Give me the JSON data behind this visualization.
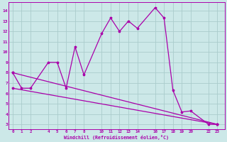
{
  "xlabel": "Windchill (Refroidissement éolien,°C)",
  "bg_color": "#cce8e8",
  "grid_color": "#aacccc",
  "line_color": "#aa00aa",
  "x_ticks": [
    0,
    1,
    2,
    4,
    5,
    6,
    7,
    8,
    10,
    11,
    12,
    13,
    14,
    16,
    17,
    18,
    19,
    20,
    22,
    23
  ],
  "ylim": [
    2.5,
    14.8
  ],
  "xlim": [
    -0.5,
    23.8
  ],
  "line1_x": [
    0,
    1,
    2,
    4,
    5,
    6,
    7,
    8,
    10,
    11,
    12,
    13,
    14,
    16,
    17,
    18,
    19,
    20,
    22,
    23
  ],
  "line1_y": [
    8.0,
    6.5,
    6.5,
    9.0,
    9.0,
    6.5,
    10.5,
    7.8,
    11.8,
    13.3,
    12.0,
    13.0,
    12.3,
    14.3,
    13.3,
    6.3,
    4.2,
    4.3,
    3.0,
    3.0
  ],
  "line2_x": [
    0,
    23
  ],
  "line2_y": [
    8.0,
    3.0
  ],
  "line3_x": [
    0,
    23
  ],
  "line3_y": [
    6.5,
    3.0
  ],
  "yticks": [
    3,
    4,
    5,
    6,
    7,
    8,
    9,
    10,
    11,
    12,
    13,
    14
  ]
}
